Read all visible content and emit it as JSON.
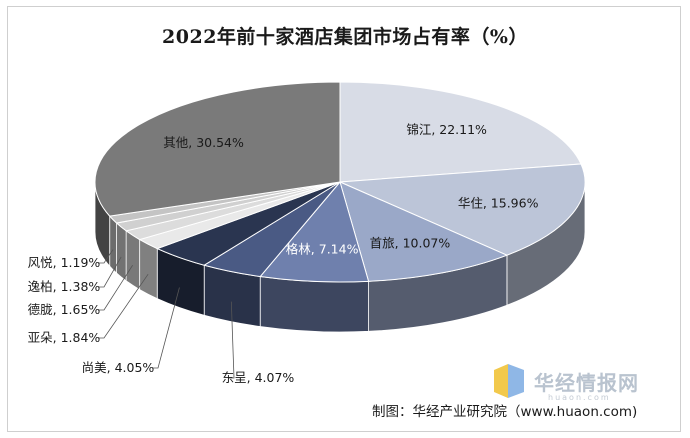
{
  "chart_data": {
    "type": "pie",
    "title": "2022年前十家酒店集团市场占有率（%）",
    "slices": [
      {
        "name": "锦江",
        "value": 22.11,
        "label": "锦江, 22.11%",
        "color": "#d8dce6"
      },
      {
        "name": "华住",
        "value": 15.96,
        "label": "华住, 15.96%",
        "color": "#bcc5d8"
      },
      {
        "name": "首旅",
        "value": 10.07,
        "label": "首旅, 10.07%",
        "color": "#9aa8c8"
      },
      {
        "name": "格林",
        "value": 7.14,
        "label": "格林, 7.14%",
        "color": "#6f80ad"
      },
      {
        "name": "东呈",
        "value": 4.07,
        "label": "东呈, 4.07%",
        "color": "#4a5a84"
      },
      {
        "name": "尚美",
        "value": 4.05,
        "label": "尚美, 4.05%",
        "color": "#2a3550"
      },
      {
        "name": "亚朵",
        "value": 1.84,
        "label": "亚朵, 1.84%",
        "color": "#e9e9e9"
      },
      {
        "name": "德胧",
        "value": 1.65,
        "label": "德胧, 1.65%",
        "color": "#dcdcdc"
      },
      {
        "name": "逸柏",
        "value": 1.38,
        "label": "逸柏, 1.38%",
        "color": "#d0d0d0"
      },
      {
        "name": "风悦",
        "value": 1.19,
        "label": "风悦, 1.19%",
        "color": "#c4c4c4"
      },
      {
        "name": "其他",
        "value": 30.54,
        "label": "其他, 30.54%",
        "color": "#7a7a7a"
      }
    ]
  },
  "watermark": {
    "text": "华经情报网",
    "sub": "huaon.com",
    "icon": "huajing-logo-icon"
  },
  "source": "制图：华经产业研究院（www.huaon.com)"
}
